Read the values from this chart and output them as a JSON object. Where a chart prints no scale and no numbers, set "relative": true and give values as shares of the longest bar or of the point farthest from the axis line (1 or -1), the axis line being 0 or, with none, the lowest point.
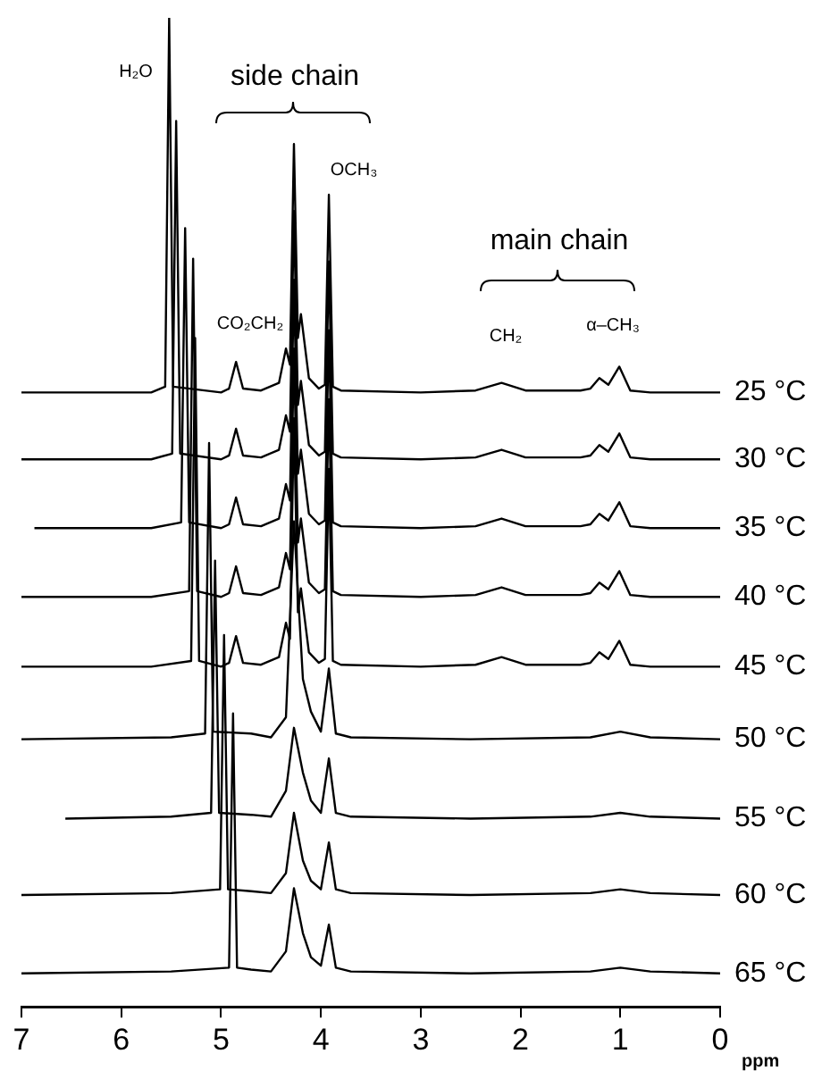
{
  "chart_data": {
    "type": "line",
    "relative": true,
    "xlabel": "ppm",
    "xlim": [
      7,
      0
    ],
    "xticks": [
      7,
      6,
      5,
      4,
      3,
      2,
      1,
      0
    ],
    "grid": false,
    "legend": false,
    "marker": "none",
    "line_style": "solid",
    "annotations": [
      "H₂O",
      "side chain",
      "OCH₃",
      "CO₂CH₂",
      "main chain",
      "CH₂",
      "α–CH₃"
    ],
    "series": [
      {
        "name": "25 °C",
        "color": "#000000",
        "x": [
          7.0,
          5.7,
          5.56,
          5.52,
          5.48,
          5.0,
          4.92,
          4.85,
          4.78,
          4.6,
          4.42,
          4.35,
          4.31,
          4.27,
          4.23,
          4.2,
          4.12,
          4.02,
          3.96,
          3.92,
          3.88,
          3.8,
          3.0,
          2.45,
          2.19,
          1.95,
          1.4,
          1.3,
          1.21,
          1.12,
          1.01,
          0.9,
          0.7,
          0.0
        ],
        "values": [
          0.608,
          0.608,
          0.614,
          1.0,
          0.614,
          0.608,
          0.612,
          0.64,
          0.612,
          0.61,
          0.618,
          0.654,
          0.637,
          0.868,
          0.665,
          0.69,
          0.623,
          0.612,
          0.616,
          0.815,
          0.614,
          0.61,
          0.608,
          0.61,
          0.618,
          0.61,
          0.61,
          0.612,
          0.623,
          0.616,
          0.635,
          0.61,
          0.608,
          0.608
        ]
      },
      {
        "name": "30 °C",
        "color": "#000000",
        "x": [
          7.0,
          5.7,
          5.49,
          5.45,
          5.41,
          5.0,
          4.92,
          4.85,
          4.78,
          4.6,
          4.42,
          4.35,
          4.31,
          4.27,
          4.23,
          4.2,
          4.12,
          4.02,
          3.96,
          3.92,
          3.88,
          3.8,
          3.0,
          2.45,
          2.19,
          1.95,
          1.4,
          1.3,
          1.21,
          1.12,
          1.01,
          0.9,
          0.7,
          0.0
        ],
        "values": [
          0.538,
          0.538,
          0.544,
          0.892,
          0.544,
          0.538,
          0.542,
          0.57,
          0.542,
          0.54,
          0.548,
          0.584,
          0.567,
          0.798,
          0.595,
          0.62,
          0.553,
          0.542,
          0.546,
          0.745,
          0.544,
          0.54,
          0.538,
          0.54,
          0.548,
          0.54,
          0.54,
          0.542,
          0.553,
          0.546,
          0.565,
          0.54,
          0.538,
          0.538
        ]
      },
      {
        "name": "35 °C",
        "color": "#000000",
        "x": [
          6.87,
          5.7,
          5.4,
          5.36,
          5.32,
          5.0,
          4.92,
          4.85,
          4.78,
          4.6,
          4.42,
          4.35,
          4.31,
          4.27,
          4.23,
          4.2,
          4.12,
          4.02,
          3.96,
          3.92,
          3.88,
          3.8,
          3.0,
          2.45,
          2.19,
          1.95,
          1.4,
          1.3,
          1.21,
          1.12,
          1.01,
          0.9,
          0.7,
          0.0
        ],
        "values": [
          0.466,
          0.466,
          0.472,
          0.78,
          0.472,
          0.466,
          0.47,
          0.498,
          0.47,
          0.468,
          0.476,
          0.512,
          0.495,
          0.726,
          0.523,
          0.548,
          0.481,
          0.47,
          0.474,
          0.673,
          0.472,
          0.468,
          0.466,
          0.468,
          0.476,
          0.468,
          0.468,
          0.47,
          0.481,
          0.474,
          0.493,
          0.468,
          0.466,
          0.466
        ]
      },
      {
        "name": "40 °C",
        "color": "#000000",
        "x": [
          7.0,
          5.7,
          5.32,
          5.28,
          5.24,
          5.0,
          4.92,
          4.85,
          4.78,
          4.6,
          4.42,
          4.35,
          4.31,
          4.27,
          4.23,
          4.2,
          4.12,
          4.02,
          3.96,
          3.92,
          3.88,
          3.8,
          3.0,
          2.45,
          2.19,
          1.95,
          1.4,
          1.3,
          1.21,
          1.12,
          1.01,
          0.9,
          0.7,
          0.0
        ],
        "values": [
          0.394,
          0.394,
          0.4,
          0.748,
          0.4,
          0.394,
          0.398,
          0.426,
          0.398,
          0.396,
          0.404,
          0.44,
          0.423,
          0.654,
          0.451,
          0.476,
          0.409,
          0.398,
          0.402,
          0.601,
          0.4,
          0.396,
          0.394,
          0.396,
          0.404,
          0.396,
          0.396,
          0.398,
          0.409,
          0.402,
          0.421,
          0.396,
          0.394,
          0.394
        ]
      },
      {
        "name": "45 °C",
        "color": "#000000",
        "x": [
          7.0,
          5.7,
          5.3,
          5.26,
          5.22,
          5.0,
          4.92,
          4.85,
          4.78,
          4.6,
          4.42,
          4.35,
          4.31,
          4.27,
          4.23,
          4.2,
          4.12,
          4.02,
          3.96,
          3.92,
          3.88,
          3.8,
          3.0,
          2.45,
          2.19,
          1.95,
          1.4,
          1.3,
          1.21,
          1.12,
          1.01,
          0.9,
          0.7,
          0.0
        ],
        "values": [
          0.321,
          0.321,
          0.327,
          0.665,
          0.327,
          0.321,
          0.325,
          0.353,
          0.325,
          0.323,
          0.331,
          0.367,
          0.35,
          0.581,
          0.378,
          0.403,
          0.336,
          0.325,
          0.329,
          0.528,
          0.327,
          0.323,
          0.321,
          0.323,
          0.331,
          0.323,
          0.323,
          0.325,
          0.336,
          0.329,
          0.348,
          0.323,
          0.321,
          0.321
        ]
      },
      {
        "name": "50 °C",
        "color": "#000000",
        "x": [
          7.0,
          5.5,
          5.16,
          5.12,
          5.08,
          4.7,
          4.5,
          4.35,
          4.27,
          4.18,
          4.1,
          4.0,
          3.92,
          3.85,
          3.7,
          2.5,
          1.3,
          1.0,
          0.7,
          0.0
        ],
        "values": [
          0.245,
          0.247,
          0.251,
          0.555,
          0.253,
          0.251,
          0.247,
          0.268,
          0.473,
          0.308,
          0.274,
          0.253,
          0.319,
          0.251,
          0.247,
          0.245,
          0.247,
          0.253,
          0.247,
          0.245
        ]
      },
      {
        "name": "55 °C",
        "color": "#000000",
        "x": [
          6.56,
          5.5,
          5.1,
          5.06,
          5.02,
          4.7,
          4.5,
          4.35,
          4.27,
          4.18,
          4.1,
          4.0,
          3.92,
          3.85,
          3.7,
          2.5,
          1.3,
          1.0,
          0.7,
          0.0
        ],
        "values": [
          0.162,
          0.164,
          0.168,
          0.432,
          0.168,
          0.166,
          0.164,
          0.191,
          0.257,
          0.21,
          0.181,
          0.168,
          0.225,
          0.168,
          0.164,
          0.162,
          0.164,
          0.168,
          0.164,
          0.162
        ]
      },
      {
        "name": "60 °C",
        "color": "#000000",
        "x": [
          7.0,
          5.5,
          5.01,
          4.97,
          4.93,
          4.7,
          4.5,
          4.35,
          4.27,
          4.18,
          4.1,
          4.0,
          3.92,
          3.85,
          3.7,
          2.5,
          1.3,
          1.0,
          0.7,
          0.0
        ],
        "values": [
          0.082,
          0.084,
          0.088,
          0.354,
          0.088,
          0.086,
          0.084,
          0.105,
          0.168,
          0.118,
          0.097,
          0.088,
          0.137,
          0.088,
          0.084,
          0.082,
          0.084,
          0.088,
          0.084,
          0.082
        ]
      },
      {
        "name": "65 °C",
        "color": "#000000",
        "x": [
          7.0,
          5.5,
          4.92,
          4.88,
          4.84,
          4.7,
          4.5,
          4.35,
          4.27,
          4.18,
          4.1,
          4.0,
          3.92,
          3.85,
          3.7,
          2.5,
          1.3,
          1.0,
          0.7,
          0.0
        ],
        "values": [
          0,
          0.002,
          0.006,
          0.272,
          0.006,
          0.004,
          0.002,
          0.023,
          0.089,
          0.042,
          0.017,
          0.008,
          0.051,
          0.006,
          0.002,
          0,
          0.002,
          0.006,
          0.002,
          0
        ]
      }
    ]
  }
}
